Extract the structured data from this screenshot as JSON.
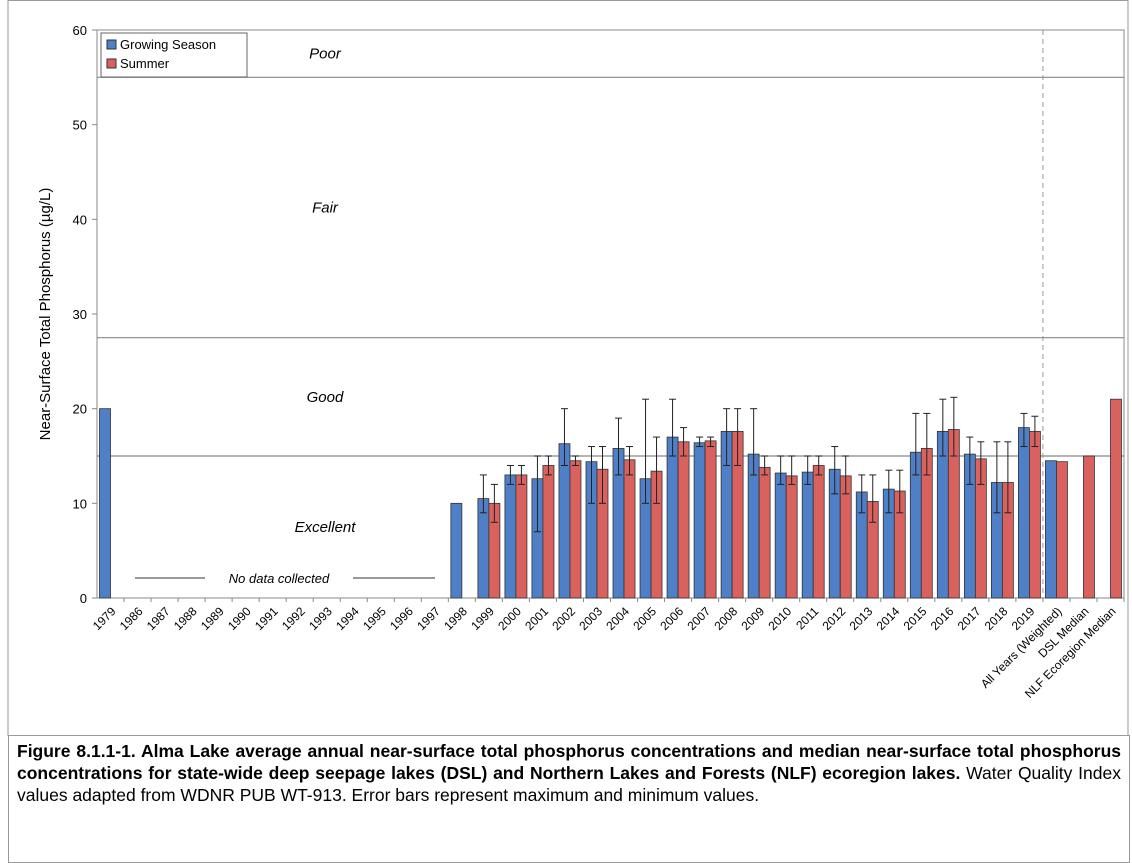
{
  "chart_data": {
    "type": "bar",
    "ylabel": "Near-Surface Total Phosphorus (µg/L)",
    "categories": [
      "1979",
      "1986",
      "1987",
      "1988",
      "1989",
      "1990",
      "1991",
      "1992",
      "1993",
      "1994",
      "1995",
      "1996",
      "1997",
      "1998",
      "1999",
      "2000",
      "2001",
      "2002",
      "2003",
      "2004",
      "2005",
      "2006",
      "2007",
      "2008",
      "2009",
      "2010",
      "2011",
      "2012",
      "2013",
      "2014",
      "2015",
      "2016",
      "2017",
      "2018",
      "2019",
      "All Years (Weighted)",
      "DSL Median",
      "NLF Ecoregion Median"
    ],
    "series": [
      {
        "name": "Growing Season",
        "color": "#4f7fc6",
        "values": [
          20,
          null,
          null,
          null,
          null,
          null,
          null,
          null,
          null,
          null,
          null,
          null,
          null,
          10,
          10.5,
          13,
          12.6,
          16.3,
          14.4,
          15.8,
          12.6,
          17,
          16.4,
          17.6,
          15.2,
          13.2,
          13.3,
          13.6,
          11.2,
          11.5,
          15.4,
          17.6,
          15.2,
          12.2,
          18,
          14.5,
          null,
          null
        ],
        "max": [
          null,
          null,
          null,
          null,
          null,
          null,
          null,
          null,
          null,
          null,
          null,
          null,
          null,
          null,
          13,
          14,
          15,
          20,
          16,
          19,
          21,
          21,
          17,
          20,
          20,
          15,
          15,
          16,
          13,
          13.5,
          19.5,
          21,
          17,
          16.5,
          19.5,
          null,
          null,
          null
        ],
        "min": [
          null,
          null,
          null,
          null,
          null,
          null,
          null,
          null,
          null,
          null,
          null,
          null,
          null,
          null,
          9,
          12,
          7,
          14,
          10,
          13,
          10,
          15,
          16,
          14,
          13,
          12,
          12,
          11,
          9,
          9,
          13,
          15,
          12,
          9,
          16,
          null,
          null,
          null
        ]
      },
      {
        "name": "Summer",
        "color": "#d9625e",
        "values": [
          null,
          null,
          null,
          null,
          null,
          null,
          null,
          null,
          null,
          null,
          null,
          null,
          null,
          null,
          10,
          13,
          14,
          14.5,
          13.6,
          14.6,
          13.4,
          16.5,
          16.6,
          17.6,
          13.8,
          12.9,
          14,
          12.9,
          10.2,
          11.3,
          15.8,
          17.8,
          14.7,
          12.2,
          17.6,
          14.4,
          15,
          21
        ],
        "max": [
          null,
          null,
          null,
          null,
          null,
          null,
          null,
          null,
          null,
          null,
          null,
          null,
          null,
          null,
          12,
          14,
          15,
          15,
          16,
          16,
          17,
          18,
          17,
          20,
          15,
          15,
          15,
          15,
          13,
          13.5,
          19.5,
          21.2,
          16.5,
          16.5,
          19.2,
          null,
          null,
          null
        ],
        "min": [
          null,
          null,
          null,
          null,
          null,
          null,
          null,
          null,
          null,
          null,
          null,
          null,
          null,
          null,
          8,
          12,
          13,
          14,
          10,
          13,
          10,
          15,
          16,
          14,
          13,
          12,
          13,
          11,
          8,
          9,
          13,
          15,
          12,
          9,
          16,
          null,
          null,
          null
        ]
      }
    ],
    "ylim": [
      0,
      60
    ],
    "yticks": [
      0,
      10,
      20,
      30,
      40,
      50,
      60
    ],
    "zone_lines": [
      15,
      27.5,
      55
    ],
    "zone_labels": [
      "Excellent",
      "Good",
      "Fair",
      "Poor"
    ],
    "annotation": "No data collected",
    "legend": "upper left"
  },
  "caption": {
    "title": "Figure 8.1.1-1. Alma Lake average annual near-surface total phosphorus concentrations and median near-surface total phosphorus concentrations for state-wide deep seepage lakes (DSL) and Northern Lakes and Forests (NLF) ecoregion lakes.",
    "text": "Water Quality Index values adapted from WDNR PUB WT-913.  Error bars represent maximum and minimum values."
  }
}
